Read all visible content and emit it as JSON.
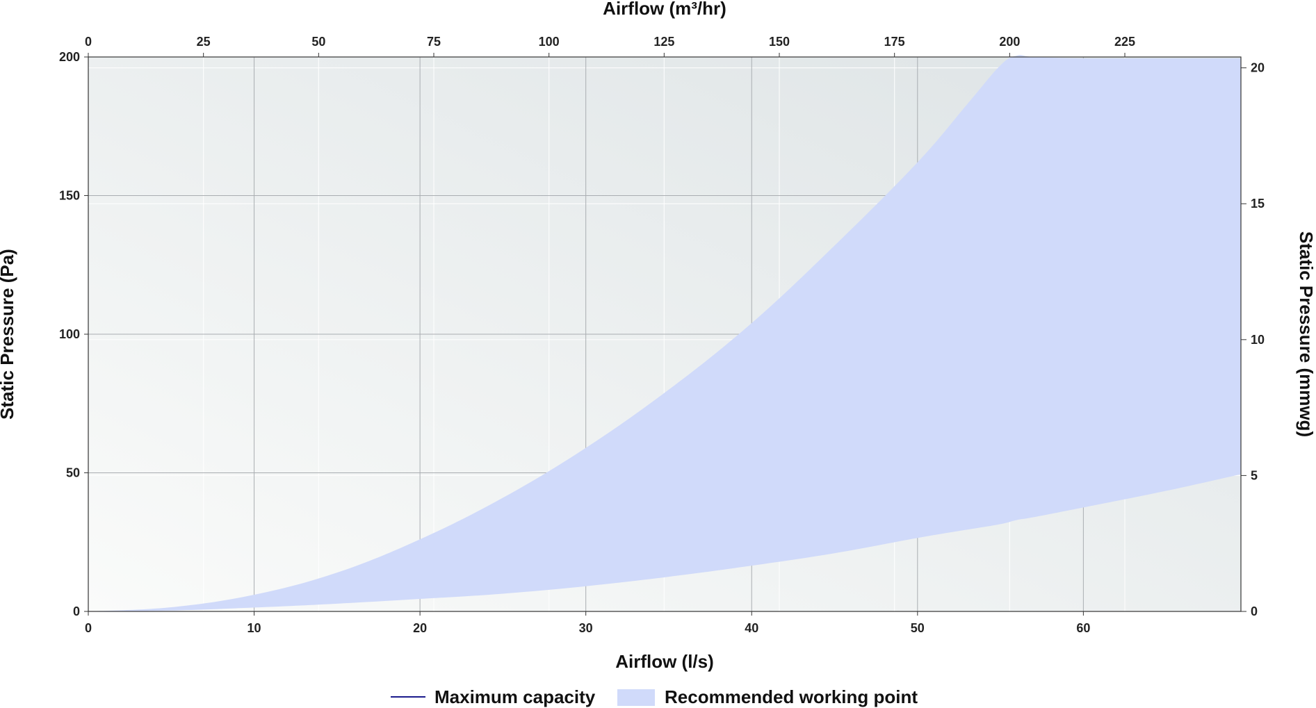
{
  "chart_data": {
    "type": "area",
    "xlabel_bottom": "Airflow (l/s)",
    "xlabel_top": "Airflow (m³/hr)",
    "ylabel_left": "Static Pressure (Pa)",
    "ylabel_right": "Static Pressure (mmwg)",
    "xlim": [
      0,
      69.5
    ],
    "ylim": [
      0,
      200
    ],
    "xlim_top": [
      0,
      250.2
    ],
    "ylim_right": [
      0,
      20.4
    ],
    "x_ticks": [
      "0",
      "10",
      "20",
      "30",
      "40",
      "50",
      "60"
    ],
    "x_tick_values": [
      0,
      10,
      20,
      30,
      40,
      50,
      60
    ],
    "y_ticks": [
      "0",
      "50",
      "100",
      "150",
      "200"
    ],
    "y_tick_values": [
      0,
      50,
      100,
      150,
      200
    ],
    "top_ticks": [
      "0",
      "25",
      "50",
      "75",
      "100",
      "125",
      "150",
      "175",
      "200",
      "225"
    ],
    "top_tick_values": [
      0,
      25,
      50,
      75,
      100,
      125,
      150,
      175,
      200,
      225
    ],
    "right_ticks": [
      "0",
      "5",
      "10",
      "15",
      "20"
    ],
    "right_tick_values": [
      0,
      5,
      10,
      15,
      20
    ],
    "grid": true,
    "legend_position": "bottom",
    "legend": [
      "Maximum capacity",
      "Recommended working point"
    ],
    "colors": {
      "max_capacity": "#1a1a8c",
      "working_area": "#d0dafa",
      "plot_bg_light": "#fafbfa",
      "plot_bg_dark": "#dde3e5"
    },
    "series": [
      {
        "name": "Recommended working point",
        "kind": "band",
        "x": [
          0,
          5,
          10,
          15,
          20,
          25,
          30,
          35,
          40,
          45,
          50,
          53,
          55,
          56,
          57,
          60,
          65,
          69.5
        ],
        "upper": [
          0,
          1.5,
          6,
          14,
          26,
          41,
          59,
          80,
          104,
          132,
          162,
          183,
          197,
          200.5,
          200,
          199.5,
          199.5,
          199.5
        ],
        "lower": [
          0,
          0.3,
          1.4,
          2.8,
          4.5,
          6.4,
          9.1,
          12.5,
          16.5,
          21,
          26.5,
          29.5,
          31.5,
          33,
          34,
          37.5,
          43.5,
          49.5
        ]
      }
    ]
  }
}
